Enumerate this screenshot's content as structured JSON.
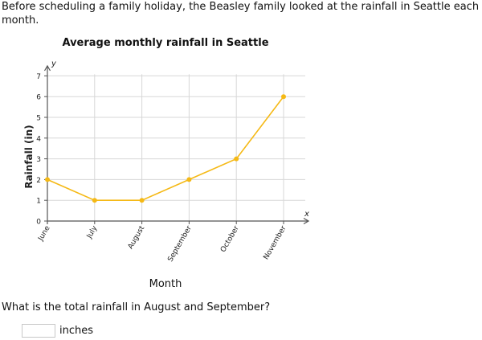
{
  "intro_text": "Before scheduling a family holiday, the Beasley family looked at the rainfall in Seattle each month.",
  "question_text": "What is the total rainfall in August and September?",
  "answer": {
    "value": "",
    "placeholder": "",
    "unit": "inches"
  },
  "colors": {
    "series": "#f5b915",
    "grid": "#d7d7d7",
    "axis": "#555555"
  },
  "chart_data": {
    "type": "line",
    "title": "Average monthly rainfall in Seattle",
    "xlabel": "Month",
    "ylabel": "Rainfall (in)",
    "x_axis_letter": "x",
    "y_axis_letter": "y",
    "categories": [
      "June",
      "July",
      "August",
      "September",
      "October",
      "November"
    ],
    "values": [
      2,
      1,
      1,
      2,
      3,
      6
    ],
    "ylim": [
      0,
      7
    ],
    "yticks": [
      0,
      1,
      2,
      3,
      4,
      5,
      6,
      7
    ],
    "grid": true,
    "legend": "none"
  }
}
